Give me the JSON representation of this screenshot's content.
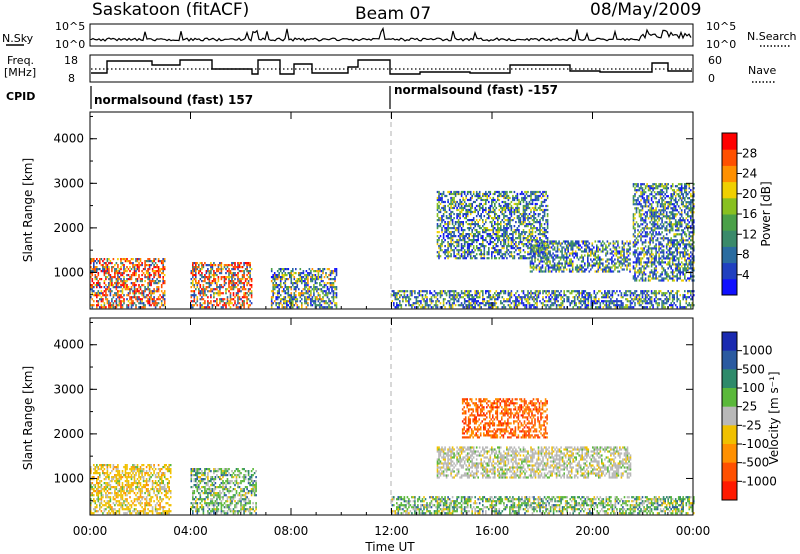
{
  "header": {
    "station": "Saskatoon (fitACF)",
    "beam": "Beam 07",
    "date": "08/May/2009"
  },
  "aux_panels": {
    "nsky_label": "N.Sky",
    "nsky_ticks": [
      "10^5",
      "10^0"
    ],
    "nsearch_label": "N.Search",
    "nsearch_ticks": [
      "10^5",
      "10^0"
    ],
    "freq_label": [
      "Freq.",
      "[MHz]"
    ],
    "freq_ticks": [
      "18",
      "8"
    ],
    "nave_label": "Nave",
    "nave_ticks": [
      "60",
      "0"
    ],
    "cpid_label": "CPID",
    "cpid_segments": [
      {
        "text": "normalsound (fast) 157"
      },
      {
        "text": "normalsound (fast) -157"
      }
    ]
  },
  "x_axis": {
    "ticks": [
      "00:00",
      "04:00",
      "08:00",
      "12:00",
      "16:00",
      "20:00",
      "00:00"
    ],
    "label": "Time UT"
  },
  "chart_data": [
    {
      "type": "heatmap",
      "panel": "power",
      "xlabel": "Time UT",
      "ylabel": "Slant Range [km]",
      "xlim": [
        0,
        24
      ],
      "ylim": [
        180,
        4600
      ],
      "yticks": [
        "1000",
        "2000",
        "3000",
        "4000"
      ],
      "colorbar": {
        "label": "Power [dB]",
        "ticks": [
          "4",
          "8",
          "12",
          "16",
          "20",
          "24",
          "28"
        ],
        "colors": [
          "#1010ff",
          "#2040c0",
          "#2a6ca0",
          "#3a8a6a",
          "#4aa048",
          "#88c020",
          "#f0d000",
          "#ff9000",
          "#ff5000",
          "#ff0000"
        ]
      },
      "regions": [
        {
          "t": [
            0.0,
            3.0
          ],
          "r": [
            200,
            1300
          ],
          "level": "high"
        },
        {
          "t": [
            4.0,
            6.4
          ],
          "r": [
            200,
            1200
          ],
          "level": "high"
        },
        {
          "t": [
            7.2,
            9.8
          ],
          "r": [
            200,
            1100
          ],
          "level": "medium"
        },
        {
          "t": [
            12.0,
            24.0
          ],
          "r": [
            200,
            600
          ],
          "level": "low"
        },
        {
          "t": [
            13.8,
            18.2
          ],
          "r": [
            1300,
            2800
          ],
          "level": "low"
        },
        {
          "t": [
            17.5,
            21.5
          ],
          "r": [
            1000,
            1700
          ],
          "level": "low"
        },
        {
          "t": [
            21.6,
            24.0
          ],
          "r": [
            800,
            3000
          ],
          "level": "low"
        }
      ]
    },
    {
      "type": "heatmap",
      "panel": "velocity",
      "xlabel": "Time UT",
      "ylabel": "Slant Range [km]",
      "xlim": [
        0,
        24
      ],
      "ylim": [
        180,
        4600
      ],
      "yticks": [
        "1000",
        "2000",
        "3000",
        "4000"
      ],
      "colorbar": {
        "label": "Velocity [m s⁻¹]",
        "ticks": [
          "1000",
          "500",
          "100",
          "25",
          "-25",
          "-100",
          "-500",
          "-1000"
        ],
        "colors": [
          "#1a2ab0",
          "#2a5aa0",
          "#2e8a6a",
          "#5ab83a",
          "#b8b8b8",
          "#f0c000",
          "#ff9000",
          "#ff5000",
          "#ff1a00"
        ]
      },
      "regions": [
        {
          "t": [
            0.0,
            3.2
          ],
          "r": [
            200,
            1300
          ],
          "level": "slow-away"
        },
        {
          "t": [
            4.0,
            6.6
          ],
          "r": [
            200,
            1200
          ],
          "level": "slow-mixed"
        },
        {
          "t": [
            12.0,
            24.0
          ],
          "r": [
            200,
            600
          ],
          "level": "slow-mixed"
        },
        {
          "t": [
            14.8,
            18.2
          ],
          "r": [
            1900,
            2800
          ],
          "level": "fast-away"
        },
        {
          "t": [
            13.8,
            21.5
          ],
          "r": [
            1000,
            1700
          ],
          "level": "near-zero"
        }
      ]
    }
  ]
}
